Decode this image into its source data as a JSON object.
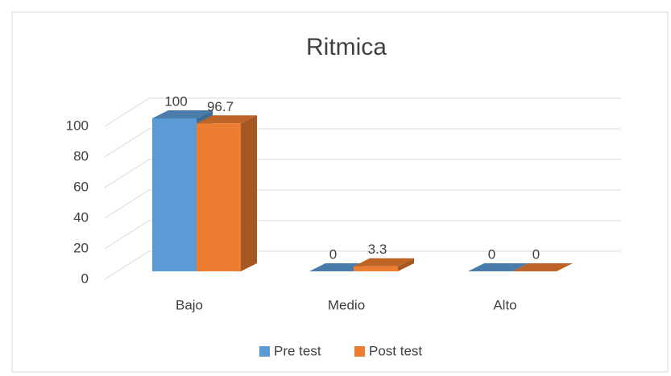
{
  "chart_data": {
    "type": "bar3d",
    "title": "Ritmica",
    "categories": [
      "Bajo",
      "Medio",
      "Alto"
    ],
    "series": [
      {
        "name": "Pre test",
        "color": "#5b9bd5",
        "values": [
          100,
          0,
          0
        ]
      },
      {
        "name": "Post test",
        "color": "#ed7d31",
        "values": [
          96.7,
          3.3,
          0
        ]
      }
    ],
    "ylim": [
      0,
      100
    ],
    "yticks": [
      0,
      20,
      40,
      60,
      80,
      100
    ],
    "grid": true,
    "legend": "bottom"
  }
}
